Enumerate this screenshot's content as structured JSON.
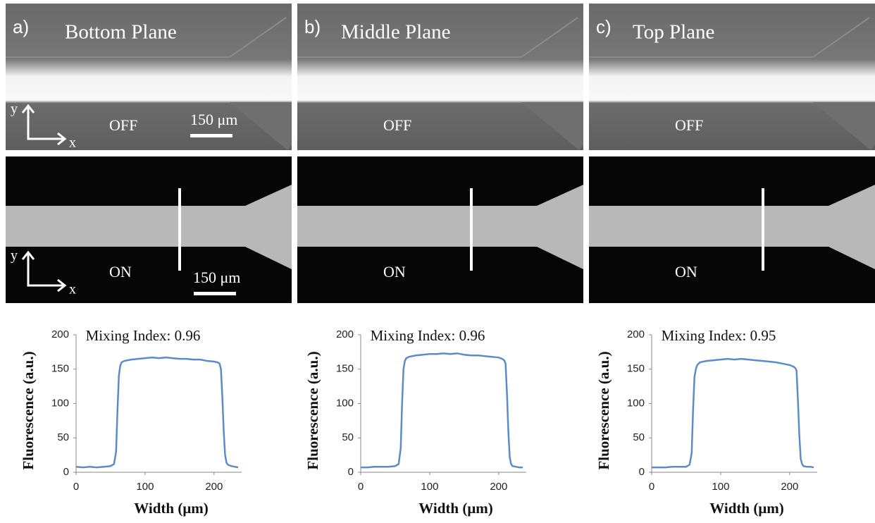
{
  "panels": [
    {
      "label": "a)",
      "title": "Bottom Plane",
      "off": "OFF",
      "on": "ON",
      "scale_bar_top": "150 μm",
      "scale_bar_bottom": "150 μm",
      "axis_y_top": "y",
      "axis_x_top": "x",
      "axis_y_bottom": "y",
      "axis_x_bottom": "x"
    },
    {
      "label": "b)",
      "title": "Middle Plane",
      "off": "OFF",
      "on": "ON"
    },
    {
      "label": "c)",
      "title": "Top Plane",
      "off": "OFF",
      "on": "ON"
    }
  ],
  "chart_data": [
    {
      "type": "line",
      "annotation": "Mixing Index: 0.96",
      "x_label": "Width (μm)",
      "y_label": "Fluorescence (a.u.)",
      "color": "#5b8cc8",
      "xlim": [
        0,
        240
      ],
      "xticks": [
        0,
        100,
        200
      ],
      "ylim": [
        0,
        200
      ],
      "yticks": [
        0,
        50,
        100,
        150,
        200
      ],
      "grid": false,
      "x": [
        0,
        10,
        20,
        30,
        40,
        50,
        55,
        58,
        60,
        62,
        64,
        66,
        70,
        80,
        90,
        100,
        110,
        120,
        130,
        140,
        150,
        160,
        170,
        180,
        190,
        200,
        205,
        208,
        210,
        212,
        214,
        216,
        218,
        220,
        225,
        230,
        235
      ],
      "values": [
        8,
        7,
        8,
        7,
        8,
        9,
        12,
        30,
        90,
        140,
        155,
        160,
        162,
        164,
        165,
        166,
        167,
        166,
        167,
        166,
        165,
        165,
        164,
        164,
        162,
        161,
        160,
        158,
        150,
        110,
        60,
        25,
        14,
        11,
        9,
        8,
        7
      ]
    },
    {
      "type": "line",
      "annotation": "Mixing Index: 0.96",
      "x_label": "Width (μm)",
      "y_label": "Fluorescence (a.u.)",
      "color": "#5b8cc8",
      "xlim": [
        0,
        240
      ],
      "xticks": [
        0,
        100,
        200
      ],
      "ylim": [
        0,
        200
      ],
      "yticks": [
        0,
        50,
        100,
        150,
        200
      ],
      "grid": false,
      "x": [
        0,
        10,
        20,
        30,
        40,
        50,
        55,
        58,
        60,
        62,
        64,
        66,
        70,
        80,
        90,
        100,
        110,
        120,
        130,
        140,
        150,
        160,
        170,
        180,
        190,
        200,
        205,
        208,
        210,
        212,
        214,
        216,
        218,
        220,
        225,
        230,
        235
      ],
      "values": [
        7,
        7,
        8,
        8,
        8,
        9,
        12,
        35,
        100,
        150,
        162,
        166,
        168,
        170,
        171,
        172,
        172,
        173,
        172,
        173,
        171,
        170,
        170,
        169,
        168,
        167,
        165,
        163,
        158,
        115,
        60,
        22,
        12,
        9,
        8,
        7,
        7
      ]
    },
    {
      "type": "line",
      "annotation": "Mixing Index: 0.95",
      "x_label": "Width (μm)",
      "y_label": "Fluorescence (a.u.)",
      "color": "#5b8cc8",
      "xlim": [
        0,
        240
      ],
      "xticks": [
        0,
        100,
        200
      ],
      "ylim": [
        0,
        200
      ],
      "yticks": [
        0,
        50,
        100,
        150,
        200
      ],
      "grid": false,
      "x": [
        0,
        10,
        20,
        30,
        40,
        50,
        55,
        58,
        60,
        62,
        64,
        66,
        70,
        80,
        90,
        100,
        110,
        120,
        130,
        140,
        150,
        160,
        170,
        180,
        190,
        200,
        205,
        208,
        210,
        212,
        214,
        216,
        218,
        220,
        225,
        230,
        235
      ],
      "values": [
        7,
        7,
        7,
        8,
        8,
        8,
        11,
        28,
        90,
        138,
        150,
        156,
        160,
        162,
        163,
        164,
        165,
        164,
        165,
        164,
        163,
        162,
        161,
        160,
        158,
        156,
        154,
        152,
        148,
        105,
        55,
        20,
        12,
        9,
        8,
        8,
        7
      ]
    }
  ]
}
